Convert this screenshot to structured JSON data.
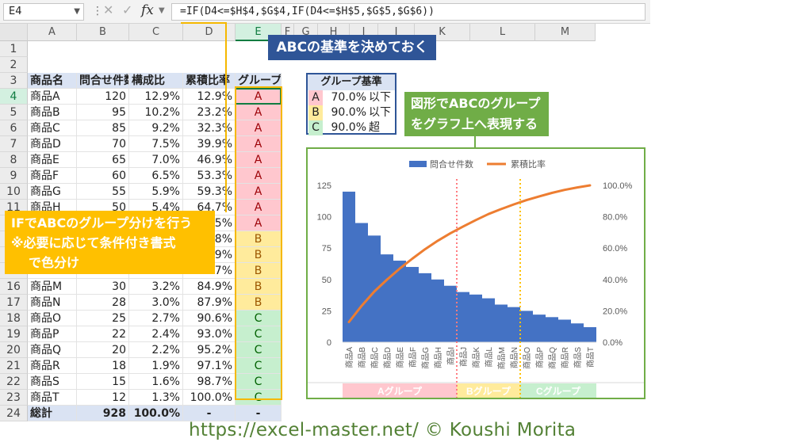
{
  "formula_bar": {
    "name_box": "E4",
    "fx": "fx",
    "formula": "=IF(D4<=$H$4,$G$4,IF(D4<=$H$5,$G$5,$G$6))"
  },
  "columns": [
    "A",
    "B",
    "C",
    "D",
    "E",
    "F",
    "G",
    "H",
    "I",
    "J",
    "K",
    "L",
    "M"
  ],
  "rows": [
    "1",
    "2",
    "3",
    "4",
    "5",
    "6",
    "7",
    "8",
    "9",
    "10",
    "11",
    "12",
    "13",
    "14",
    "15",
    "16",
    "17",
    "18",
    "19",
    "20",
    "21",
    "22",
    "23",
    "24"
  ],
  "table": {
    "headers": [
      "商品名",
      "問合せ件数",
      "構成比",
      "累積比率",
      "グループ"
    ],
    "rows": [
      [
        "商品A",
        "120",
        "12.9%",
        "12.9%",
        "A"
      ],
      [
        "商品B",
        "95",
        "10.2%",
        "23.2%",
        "A"
      ],
      [
        "商品C",
        "85",
        "9.2%",
        "32.3%",
        "A"
      ],
      [
        "商品D",
        "70",
        "7.5%",
        "39.9%",
        "A"
      ],
      [
        "商品E",
        "65",
        "7.0%",
        "46.9%",
        "A"
      ],
      [
        "商品F",
        "60",
        "6.5%",
        "53.3%",
        "A"
      ],
      [
        "商品G",
        "55",
        "5.9%",
        "59.3%",
        "A"
      ],
      [
        "商品H",
        "50",
        "5.4%",
        "64.7%",
        "A"
      ],
      [
        "",
        "",
        "",
        "5%",
        "A"
      ],
      [
        "",
        "",
        "",
        "8%",
        "B"
      ],
      [
        "",
        "",
        "",
        "9%",
        "B"
      ],
      [
        "",
        "",
        "",
        "7%",
        "B"
      ],
      [
        "商品M",
        "30",
        "3.2%",
        "84.9%",
        "B"
      ],
      [
        "商品N",
        "28",
        "3.0%",
        "87.9%",
        "B"
      ],
      [
        "商品O",
        "25",
        "2.7%",
        "90.6%",
        "C"
      ],
      [
        "商品P",
        "22",
        "2.4%",
        "93.0%",
        "C"
      ],
      [
        "商品Q",
        "20",
        "2.2%",
        "95.2%",
        "C"
      ],
      [
        "商品R",
        "18",
        "1.9%",
        "97.1%",
        "C"
      ],
      [
        "商品S",
        "15",
        "1.6%",
        "98.7%",
        "C"
      ],
      [
        "商品T",
        "12",
        "1.3%",
        "100.0%",
        "C"
      ]
    ],
    "total": [
      "総計",
      "928",
      "100.0%",
      "-",
      "-"
    ]
  },
  "criteria": {
    "header": "グループ基準",
    "rows": [
      {
        "group": "A",
        "pct": "70.0%",
        "cond": "以下"
      },
      {
        "group": "B",
        "pct": "90.0%",
        "cond": "以下"
      },
      {
        "group": "C",
        "pct": "90.0%",
        "cond": "超"
      }
    ]
  },
  "callouts": {
    "abc_criteria": "ABCの基準を決めておく",
    "chart_note_line1": "図形でABCのグループ",
    "chart_note_line2": "をグラフ上へ表現する",
    "if_note_line1": "IFでABCのグループ分けを行う",
    "if_note_line2": "※必要に応じて条件付き書式",
    "if_note_line3": "で色分け"
  },
  "footer": "https://excel-master.net/  © Koushi Morita",
  "colors": {
    "group_a_fill": "#ffc7ce",
    "group_b_fill": "#ffeb9c",
    "group_c_fill": "#c6efce",
    "header_fill": "#dae3f3",
    "bar": "#4472c4",
    "line": "#ed7d31",
    "callout_blue": "#2f5597",
    "callout_green": "#70ad47",
    "callout_orange": "#ffc000"
  },
  "chart_data": {
    "type": "bar",
    "categories": [
      "商品A",
      "商品B",
      "商品C",
      "商品D",
      "商品E",
      "商品F",
      "商品G",
      "商品H",
      "商品I",
      "商品J",
      "商品K",
      "商品L",
      "商品M",
      "商品N",
      "商品O",
      "商品P",
      "商品Q",
      "商品R",
      "商品S",
      "商品T"
    ],
    "series": [
      {
        "name": "問合せ件数",
        "type": "bar",
        "axis": "left",
        "values": [
          120,
          95,
          85,
          70,
          65,
          60,
          55,
          50,
          45,
          40,
          38,
          35,
          30,
          28,
          25,
          22,
          20,
          18,
          15,
          12
        ]
      },
      {
        "name": "累積比率",
        "type": "line",
        "axis": "right",
        "values": [
          12.9,
          23.2,
          32.3,
          39.9,
          46.9,
          53.3,
          59.3,
          64.7,
          69.5,
          73.8,
          77.9,
          81.7,
          84.9,
          87.9,
          90.6,
          93.0,
          95.2,
          97.1,
          98.7,
          100.0
        ]
      }
    ],
    "y_left": {
      "min": 0,
      "max": 125,
      "ticks": [
        "0",
        "25",
        "50",
        "75",
        "100",
        "125"
      ]
    },
    "y_right": {
      "min": 0,
      "max": 100,
      "ticks": [
        "0.0%",
        "20.0%",
        "40.0%",
        "60.0%",
        "80.0%",
        "100.0%"
      ]
    },
    "legend": "top",
    "boundaries": [
      {
        "after_index": 8,
        "color": "#ff7c80"
      },
      {
        "after_index": 13,
        "color": "#ffc000"
      }
    ],
    "group_bands": [
      {
        "label": "Aグループ",
        "from": 0,
        "to": 8,
        "color": "#ffc7ce"
      },
      {
        "label": "Bグループ",
        "from": 9,
        "to": 13,
        "color": "#ffeb9c"
      },
      {
        "label": "Cグループ",
        "from": 14,
        "to": 19,
        "color": "#c6efce"
      }
    ]
  }
}
